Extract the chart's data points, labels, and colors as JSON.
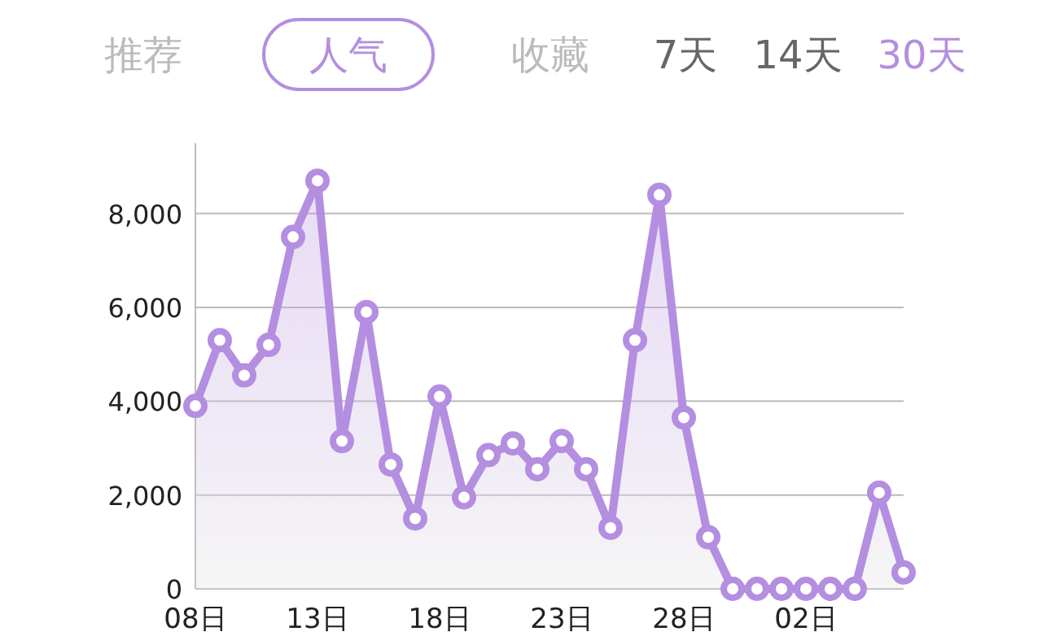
{
  "chart_data": {
    "type": "area",
    "categories": [
      "08日",
      null,
      null,
      null,
      null,
      "13日",
      null,
      null,
      null,
      null,
      "18日",
      null,
      null,
      null,
      null,
      "23日",
      null,
      null,
      null,
      null,
      "28日",
      null,
      null,
      null,
      null,
      "02日",
      null,
      null,
      null,
      null
    ],
    "series": [
      {
        "color": "#b48ee0",
        "values": [
          3900,
          5300,
          4550,
          5200,
          7500,
          8700,
          3150,
          5900,
          2650,
          1500,
          4100,
          1950,
          2850,
          3100,
          2550,
          3150,
          2550,
          1300,
          5300,
          8400,
          3650,
          1100,
          0,
          0,
          0,
          0,
          0,
          0,
          2050,
          350
        ]
      }
    ],
    "ylim": [
      0,
      9500
    ],
    "yticks": [
      {
        "value": 0,
        "label": "0"
      },
      {
        "value": 2000,
        "label": "2,000"
      },
      {
        "value": 4000,
        "label": "4,000"
      },
      {
        "value": 6000,
        "label": "6,000"
      },
      {
        "value": 8000,
        "label": "8,000"
      }
    ],
    "grid": "y",
    "marker": "circle",
    "line_style": "solid",
    "annotations": [
      "推荐",
      "人气",
      "收藏",
      "7天",
      "14天",
      "30天"
    ]
  }
}
